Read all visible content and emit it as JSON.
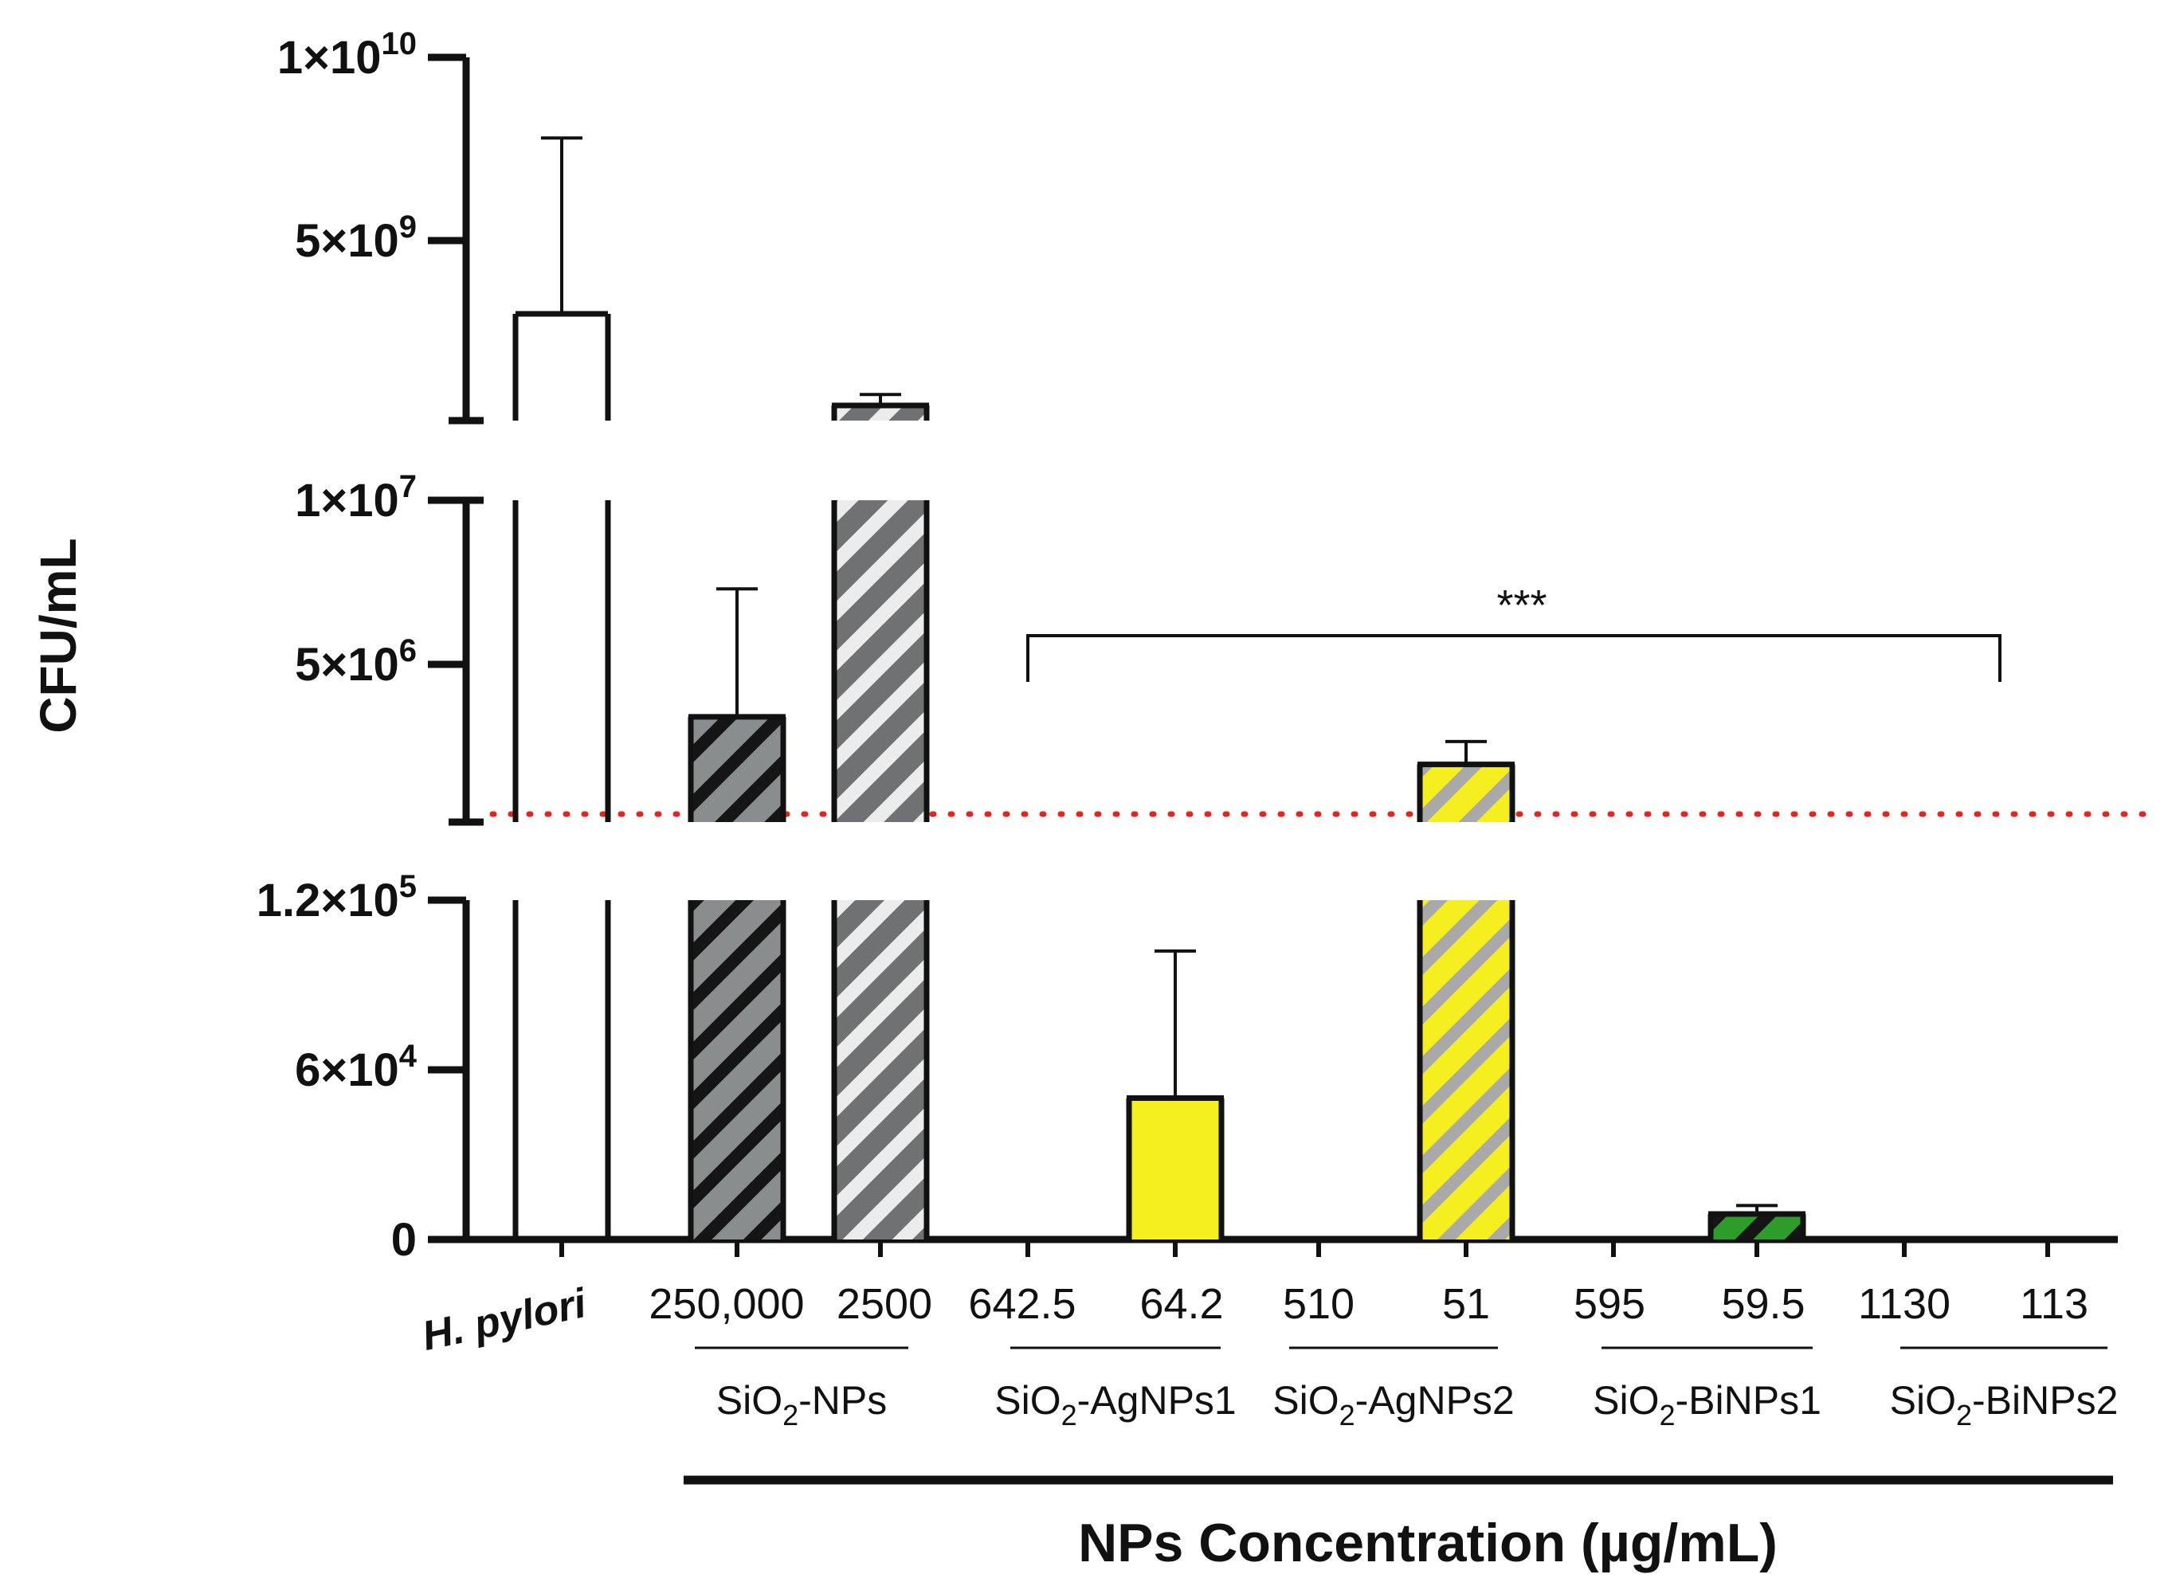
{
  "chart_data": {
    "type": "bar",
    "title": "",
    "ylabel": "CFU/mL",
    "xlabel": "NPs Concentration (µg/mL)",
    "y_axis_segments": [
      {
        "name": "upper",
        "ylim": [
          0,
          10000000000
        ],
        "ticks": [
          {
            "value": 10000000000,
            "mant": "1×10",
            "exp": "10"
          },
          {
            "value": 5000000000,
            "mant": "5×10",
            "exp": "9"
          }
        ]
      },
      {
        "name": "middle",
        "ylim": [
          0,
          10000000
        ],
        "ticks": [
          {
            "value": 10000000,
            "mant": "1×10",
            "exp": "7"
          },
          {
            "value": 5000000,
            "mant": "5×10",
            "exp": "6"
          }
        ]
      },
      {
        "name": "lower",
        "ylim": [
          0,
          120000
        ],
        "ticks": [
          {
            "value": 120000,
            "mant": "1.2×10",
            "exp": "5"
          },
          {
            "value": 60000,
            "mant": "6×10",
            "exp": "4"
          },
          {
            "value": 0,
            "mant": "0",
            "exp": ""
          }
        ]
      }
    ],
    "bars": [
      {
        "category": "H. pylori",
        "group": "",
        "value": 3000000000,
        "error": 4800000000,
        "color": "#ffffff",
        "pattern": "none"
      },
      {
        "category": "250,000",
        "group": "SiO2-NPs",
        "value": 3400000,
        "error": 3900000,
        "color": "#8a8d8e",
        "pattern": "dark"
      },
      {
        "category": "2500",
        "group": "SiO2-NPs",
        "value": 500000000,
        "error": 300000000,
        "color": "#6f7172",
        "pattern": "light"
      },
      {
        "category": "642.5",
        "group": "SiO2-AgNPs1",
        "value": 0,
        "error": 0,
        "color": "#f5ef1f",
        "pattern": "none"
      },
      {
        "category": "64.2",
        "group": "SiO2-AgNPs1",
        "value": 50000,
        "error": 52000,
        "color": "#f5ef1f",
        "pattern": "none"
      },
      {
        "category": "510",
        "group": "SiO2-AgNPs2",
        "value": 0,
        "error": 0,
        "color": "#f5ef1f",
        "pattern": "grey"
      },
      {
        "category": "51",
        "group": "SiO2-AgNPs2",
        "value": 1950000,
        "error": 700000,
        "color": "#f5ef1f",
        "pattern": "grey"
      },
      {
        "category": "595",
        "group": "SiO2-BiNPs1",
        "value": 0,
        "error": 0,
        "color": "#2e9c2a",
        "pattern": "dark"
      },
      {
        "category": "59.5",
        "group": "SiO2-BiNPs1",
        "value": 9000,
        "error": 3000,
        "color": "#2e9c2a",
        "pattern": "dark"
      },
      {
        "category": "1130",
        "group": "SiO2-BiNPs2",
        "value": 0,
        "error": 0,
        "color": "#ffffff",
        "pattern": "none"
      },
      {
        "category": "113",
        "group": "SiO2-BiNPs2",
        "value": 0,
        "error": 0,
        "color": "#ffffff",
        "pattern": "none"
      }
    ],
    "x_labels": [
      "H. pylori",
      "250,000",
      "2500",
      "642.5",
      "64.2",
      "510",
      "51",
      "595",
      "59.5",
      "1130",
      "113"
    ],
    "groups": [
      {
        "base": "SiO",
        "sub": "2",
        "rest": "-NPs"
      },
      {
        "base": "SiO",
        "sub": "2",
        "rest": "-AgNPs1"
      },
      {
        "base": "SiO",
        "sub": "2",
        "rest": "-AgNPs2"
      },
      {
        "base": "SiO",
        "sub": "2",
        "rest": "-BiNPs1"
      },
      {
        "base": "SiO",
        "sub": "2",
        "rest": "-BiNPs2"
      }
    ],
    "annotations": [
      {
        "text": "***",
        "spans": "642.5 to 113"
      }
    ],
    "reference_line": {
      "style": "dotted",
      "color": "#e8231b",
      "value": 0
    }
  }
}
